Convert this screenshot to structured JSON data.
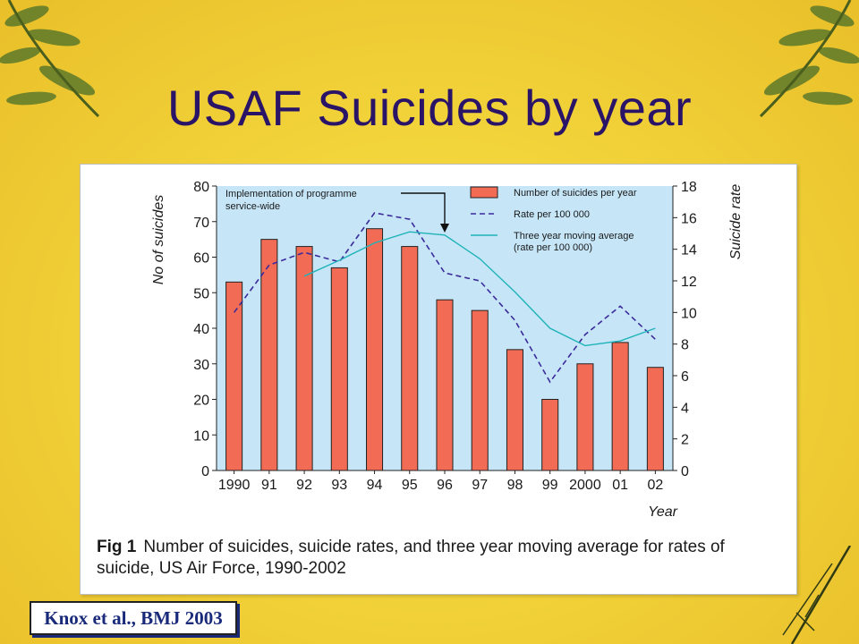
{
  "slide": {
    "title": "USAF Suicides by year",
    "citation": "Knox et al., BMJ 2003"
  },
  "figure": {
    "caption_label": "Fig 1",
    "caption_text": "Number of suicides, suicide rates, and three year moving average for rates of suicide, US Air Force, 1990-2002"
  },
  "colors": {
    "bar": "#f26b55",
    "plot_background": "#c6e6f8",
    "rate_line": "#3b2a9a",
    "moving_average_line": "#1fb3b8",
    "title": "#2a1468"
  },
  "chart_data": {
    "type": "bar",
    "categories": [
      "1990",
      "91",
      "92",
      "93",
      "94",
      "95",
      "96",
      "97",
      "98",
      "99",
      "2000",
      "01",
      "02"
    ],
    "xlabel": "Year",
    "ylabel": "No of suicides",
    "y2label": "Suicide rate",
    "ylim": [
      0,
      80
    ],
    "y2lim": [
      0,
      18
    ],
    "yticks": [
      "0",
      "10",
      "20",
      "30",
      "40",
      "50",
      "60",
      "70",
      "80"
    ],
    "y2ticks": [
      "0",
      "2",
      "4",
      "6",
      "8",
      "10",
      "12",
      "14",
      "16",
      "18"
    ],
    "annotation": [
      "Implementation of programme",
      "service-wide"
    ],
    "annotation_at": "96",
    "series": [
      {
        "name": "Number of suicides per year",
        "kind": "bar",
        "axis": "left",
        "values": [
          53,
          65,
          63,
          57,
          68,
          63,
          48,
          45,
          34,
          20,
          30,
          36,
          29
        ]
      },
      {
        "name": "Rate per 100 000",
        "kind": "dashed-line",
        "axis": "right",
        "values": [
          10.0,
          13.0,
          13.8,
          13.2,
          16.3,
          15.9,
          12.5,
          12.0,
          9.5,
          5.6,
          8.6,
          10.4,
          8.3
        ]
      },
      {
        "name": "Three year moving average (rate per 100 000)",
        "name_lines": [
          "Three year moving average",
          "(rate per 100 000)"
        ],
        "kind": "dotted-line",
        "axis": "right",
        "values": [
          null,
          null,
          12.3,
          13.3,
          14.4,
          15.1,
          14.9,
          13.4,
          11.3,
          9.0,
          7.9,
          8.2,
          9.0
        ]
      }
    ],
    "legend_position": "top-right",
    "grid": false
  }
}
